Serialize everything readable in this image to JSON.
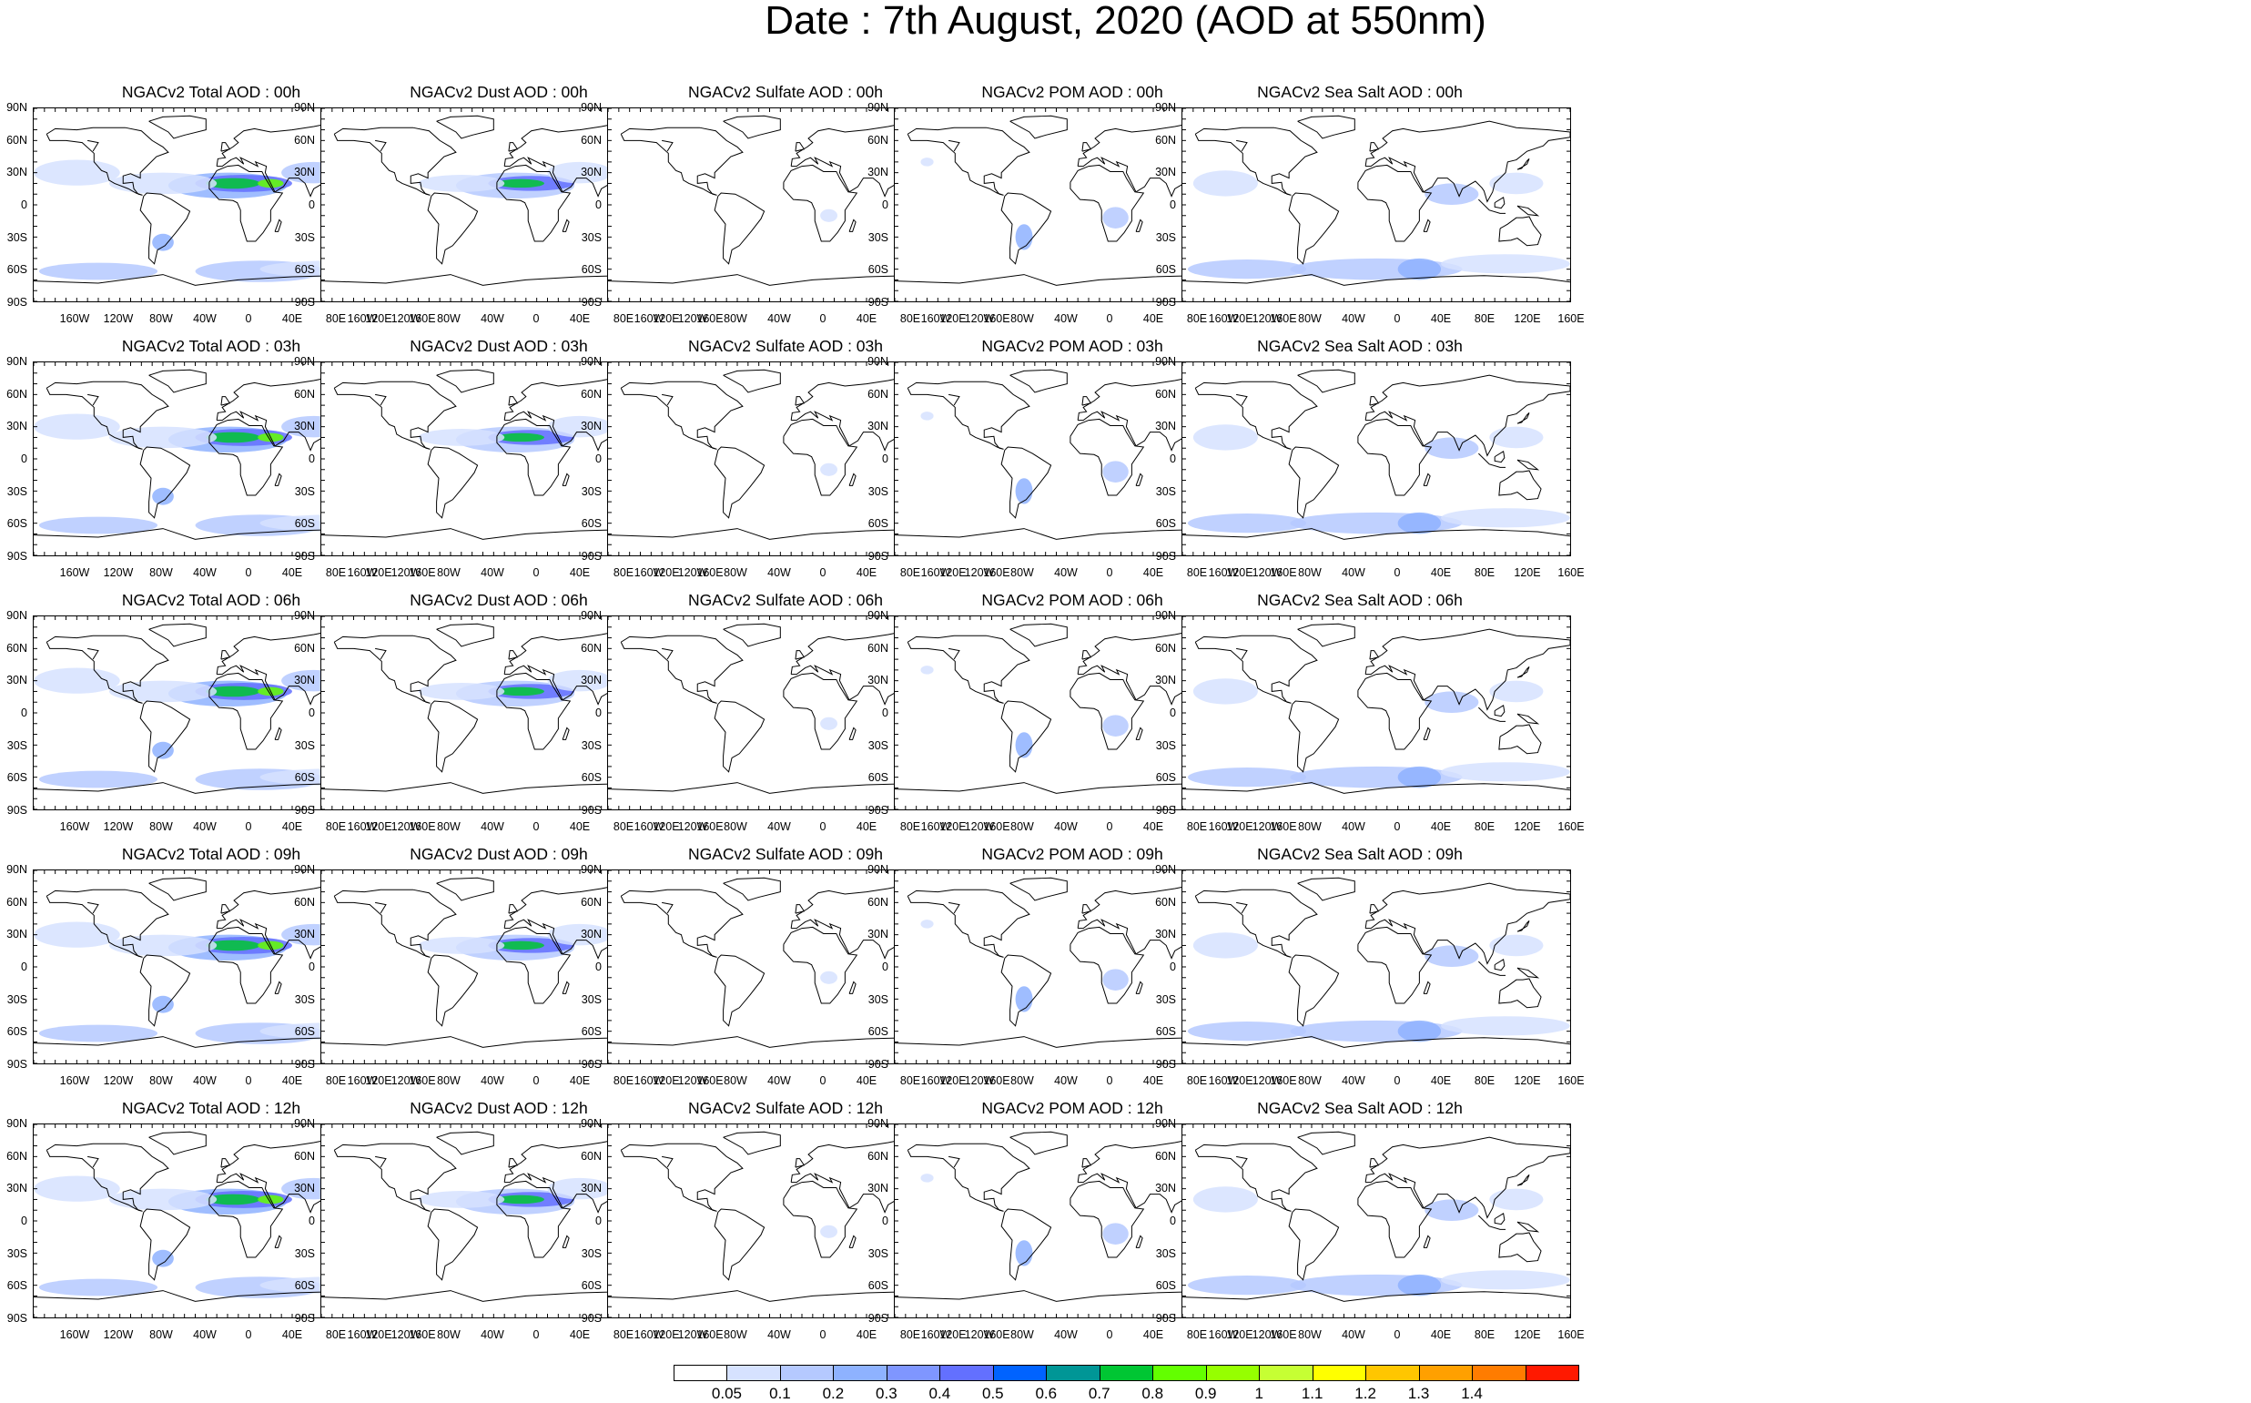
{
  "title": "Date : 7th August, 2020 (AOD at 550nm)",
  "lat_labels": [
    "90N",
    "60N",
    "30N",
    "0",
    "30S",
    "60S",
    "90S"
  ],
  "lon_labels": [
    "160W",
    "120W",
    "80W",
    "40W",
    "0",
    "40E",
    "80E",
    "120E",
    "160E"
  ],
  "panels": [
    [
      "NGACv2 Total AOD : 00h",
      "NGACv2 Dust AOD : 00h",
      "NGACv2 Sulfate AOD : 00h",
      "NGACv2 POM AOD : 00h",
      "NGACv2 Sea Salt AOD : 00h"
    ],
    [
      "NGACv2 Total AOD : 03h",
      "NGACv2 Dust AOD : 03h",
      "NGACv2 Sulfate AOD : 03h",
      "NGACv2 POM AOD : 03h",
      "NGACv2 Sea Salt AOD : 03h"
    ],
    [
      "NGACv2 Total AOD : 06h",
      "NGACv2 Dust AOD : 06h",
      "NGACv2 Sulfate AOD : 06h",
      "NGACv2 POM AOD : 06h",
      "NGACv2 Sea Salt AOD : 06h"
    ],
    [
      "NGACv2 Total AOD : 09h",
      "NGACv2 Dust AOD : 09h",
      "NGACv2 Sulfate AOD : 09h",
      "NGACv2 POM AOD : 09h",
      "NGACv2 Sea Salt  AOD : 09h"
    ],
    [
      "NGACv2 Total AOD  : 12h",
      "NGACv2 Dust AOD : 12h",
      "NGACv2 Sulfate AOD : 12h",
      "NGACv2 POM  AOD : 12h",
      "NGACv2 Sea Salt AOD : 12h"
    ]
  ],
  "colorbar": {
    "labels": [
      "0.05",
      "0.1",
      "0.2",
      "0.3",
      "0.4",
      "0.5",
      "0.6",
      "0.7",
      "0.8",
      "0.9",
      "1",
      "1.1",
      "1.2",
      "1.3",
      "1.4"
    ],
    "colors": [
      "#ffffff",
      "#d6e2ff",
      "#b5c9ff",
      "#8eb2ff",
      "#7f96ff",
      "#6370ff",
      "#0063ff",
      "#009696",
      "#00c633",
      "#63ff00",
      "#96ff00",
      "#c6ff33",
      "#ffff00",
      "#ffc600",
      "#ffa000",
      "#ff7c00",
      "#ff1900"
    ]
  }
}
